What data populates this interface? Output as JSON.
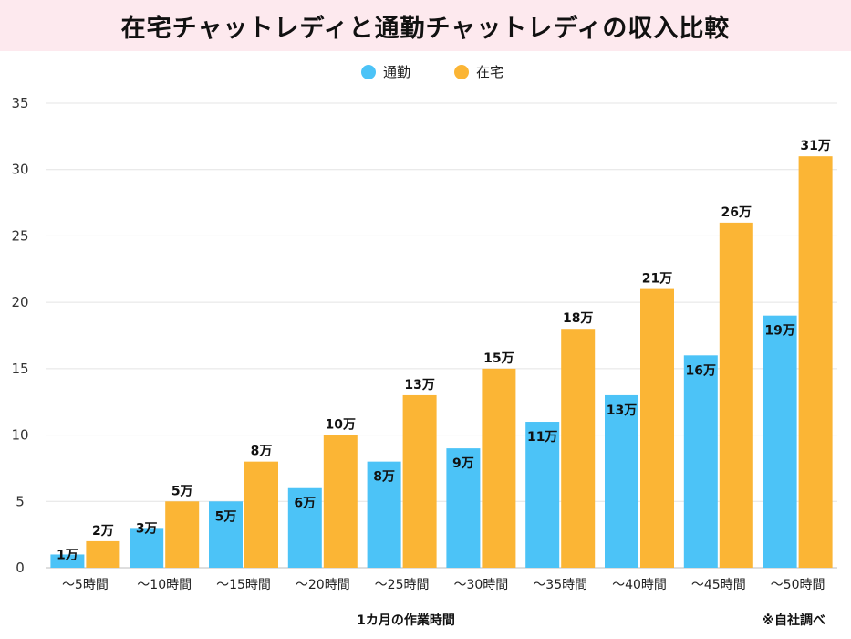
{
  "chart_data": {
    "type": "bar",
    "title": "在宅チャットレディと通勤チャットレディの収入比較",
    "categories": [
      "～5時間",
      "～10時間",
      "～15時間",
      "～20時間",
      "～25時間",
      "～30時間",
      "～35時間",
      "～40時間",
      "～45時間",
      "～50時間"
    ],
    "series": [
      {
        "name": "通勤",
        "color": "#4cc3f7",
        "values": [
          1,
          3,
          5,
          6,
          8,
          9,
          11,
          13,
          16,
          19
        ],
        "labels": [
          "1万",
          "3万",
          "5万",
          "6万",
          "8万",
          "9万",
          "11万",
          "13万",
          "16万",
          "19万"
        ]
      },
      {
        "name": "在宅",
        "color": "#fbb535",
        "values": [
          2,
          5,
          8,
          10,
          13,
          15,
          18,
          21,
          26,
          31
        ],
        "labels": [
          "2万",
          "5万",
          "8万",
          "10万",
          "13万",
          "15万",
          "18万",
          "21万",
          "26万",
          "31万"
        ]
      }
    ],
    "xlabel": "1カ月の作業時間",
    "ylabel": "",
    "ylim": [
      0,
      35
    ],
    "yticks": [
      "0",
      "5",
      "10",
      "15",
      "20",
      "25",
      "30",
      "35"
    ],
    "grid": true,
    "legend": "top-center",
    "source_note": "※自社調べ"
  }
}
